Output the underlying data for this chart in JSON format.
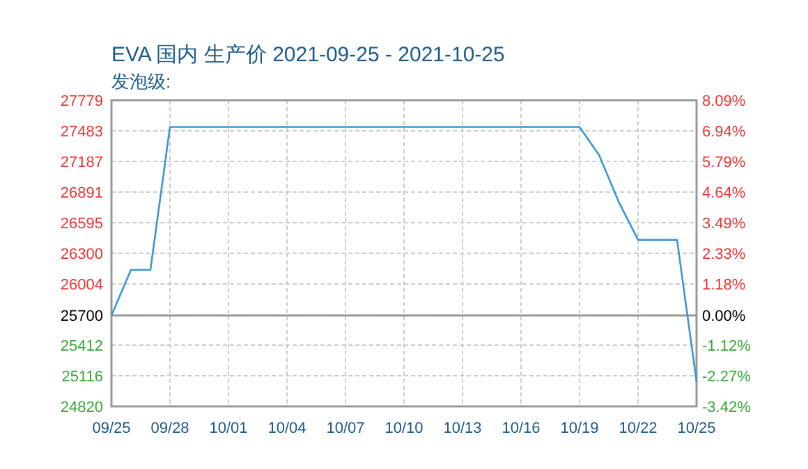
{
  "chart_data": {
    "type": "line",
    "title": "EVA 国内 生产价 2021-09-25 - 2021-10-25",
    "subtitle": "发泡级:",
    "x": [
      "2021-09-25",
      "2021-09-26",
      "2021-09-27",
      "2021-09-28",
      "2021-10-19",
      "2021-10-20",
      "2021-10-21",
      "2021-10-22",
      "2021-10-24",
      "2021-10-25"
    ],
    "series": [
      {
        "color": "#3a97d4",
        "values": [
          25700,
          26140,
          26140,
          27520,
          27520,
          27250,
          26800,
          26430,
          26430,
          25060
        ]
      }
    ],
    "xlim": [
      "2021-09-25",
      "2021-10-25"
    ],
    "xticks": [
      {
        "value": "2021-09-25",
        "label": "09/25"
      },
      {
        "value": "2021-09-28",
        "label": "09/28"
      },
      {
        "value": "2021-10-01",
        "label": "10/01"
      },
      {
        "value": "2021-10-04",
        "label": "10/04"
      },
      {
        "value": "2021-10-07",
        "label": "10/07"
      },
      {
        "value": "2021-10-10",
        "label": "10/10"
      },
      {
        "value": "2021-10-13",
        "label": "10/13"
      },
      {
        "value": "2021-10-16",
        "label": "10/16"
      },
      {
        "value": "2021-10-19",
        "label": "10/19"
      },
      {
        "value": "2021-10-22",
        "label": "10/22"
      },
      {
        "value": "2021-10-25",
        "label": "10/25"
      }
    ],
    "ylim": [
      24820,
      27779
    ],
    "yticks": [
      24820,
      25116,
      25412,
      25700,
      26004,
      26300,
      26595,
      26891,
      27187,
      27483,
      27779
    ],
    "y2lim": [
      -3.42,
      8.09
    ],
    "y2ticks": [
      {
        "value": -3.42,
        "label": "-3.42%"
      },
      {
        "value": -2.27,
        "label": "-2.27%"
      },
      {
        "value": -1.12,
        "label": "-1.12%"
      },
      {
        "value": 0,
        "label": "0.00%"
      },
      {
        "value": 1.18,
        "label": "1.18%"
      },
      {
        "value": 2.33,
        "label": "2.33%"
      },
      {
        "value": 3.49,
        "label": "3.49%"
      },
      {
        "value": 4.64,
        "label": "4.64%"
      },
      {
        "value": 5.79,
        "label": "5.79%"
      },
      {
        "value": 6.94,
        "label": "6.94%"
      },
      {
        "value": 8.09,
        "label": "8.09%"
      }
    ],
    "ref_lines": [
      {
        "axis": "y",
        "value": 25700,
        "color": "#999999"
      }
    ],
    "grid": true,
    "marker": "none",
    "line_style": "solid"
  }
}
